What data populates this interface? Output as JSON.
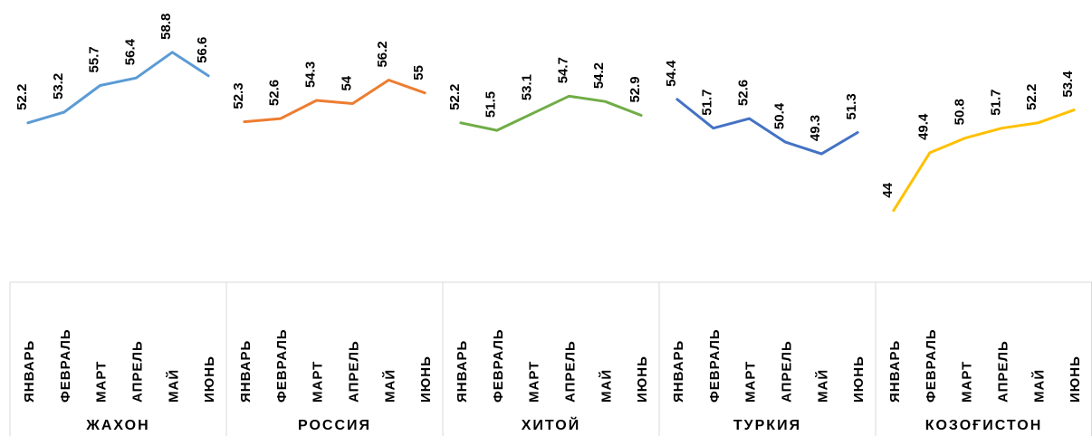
{
  "chart_data": {
    "type": "line",
    "months": [
      "ЯНВАРЬ",
      "ФЕВРАЛЬ",
      "МАРТ",
      "АПРЕЛЬ",
      "МАЙ",
      "ИЮНЬ"
    ],
    "ylim": [
      40,
      62
    ],
    "grid": false,
    "legend": "none",
    "series": [
      {
        "name": "ЖАХОН",
        "color": "#5B9BD5",
        "values": [
          52.2,
          53.2,
          55.7,
          56.4,
          58.8,
          56.6
        ]
      },
      {
        "name": "РОССИЯ",
        "color": "#ED7D31",
        "values": [
          52.3,
          52.6,
          54.3,
          54,
          56.2,
          55
        ]
      },
      {
        "name": "ХИТОЙ",
        "color": "#70AD47",
        "values": [
          52.2,
          51.5,
          53.1,
          54.7,
          54.2,
          52.9
        ]
      },
      {
        "name": "ТУРКИЯ",
        "color": "#4472C4",
        "values": [
          54.4,
          51.7,
          52.6,
          50.4,
          49.3,
          51.3
        ]
      },
      {
        "name": "КОЗОҒИСТОН",
        "color": "#FFC000",
        "values": [
          44,
          49.4,
          50.8,
          51.7,
          52.2,
          53.4
        ]
      }
    ]
  }
}
